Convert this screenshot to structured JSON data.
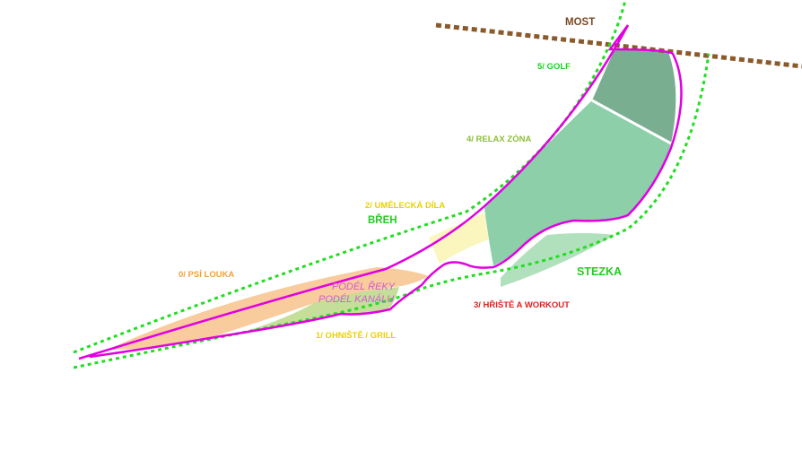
{
  "map": {
    "labels": {
      "most": "MOST",
      "golf": "5/ GOLF",
      "relax": "4/ RELAX ZÓNA",
      "art": "2/ UMĚLECKÁ DÍLA",
      "breh": "BŘEH",
      "dog": "0/ PSÍ LOUKA",
      "along_river": "PODÉL ŘEKY",
      "along_canal": "PODÉL KANÁLU",
      "fireplace": "1/ OHNIŠTĚ / GRILL",
      "playground": "3/ HŘIŠTĚ A WORKOUT",
      "stezka": "STEZKA"
    },
    "colors": {
      "bridge": "#8a5a2b",
      "green_path": "#22dd22",
      "magenta_path": "#e100e1",
      "golf_zone": "#7aae91",
      "relax_zone": "#8ccfa9",
      "art_zone": "#fbf6be",
      "dog_zone": "#f8cc9c",
      "grill_zone": "#c2dc94",
      "playground_zone": "#b1e0bd",
      "label_most": "#7a4a22",
      "label_golf": "#22cc22",
      "label_relax": "#8cbe3c",
      "label_art": "#e8d200",
      "label_breh": "#22cc22",
      "label_dog": "#f0a040",
      "label_along": "#d35ad0",
      "label_grill": "#e8d200",
      "label_playground": "#e02020",
      "label_stezka": "#22cc22"
    }
  }
}
